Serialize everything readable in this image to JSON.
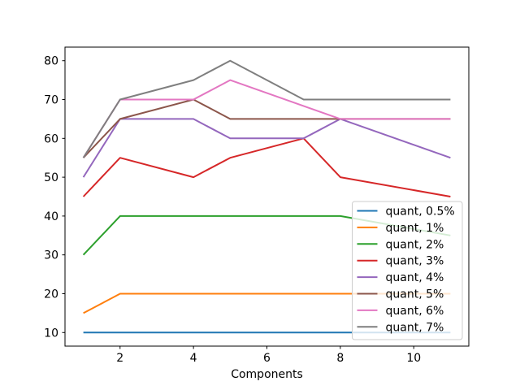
{
  "chart_data": {
    "type": "line",
    "title": "",
    "xlabel": "Components",
    "ylabel": "",
    "x_ticks": [
      2,
      4,
      6,
      8,
      10
    ],
    "y_ticks": [
      10,
      20,
      30,
      40,
      50,
      60,
      70,
      80
    ],
    "xlim": [
      0.5,
      11.5
    ],
    "ylim": [
      6.5,
      83.5
    ],
    "grid": false,
    "legend_position": "inside lower-right of axes",
    "legend_frame_color": "#cccccc",
    "axes_edge_color": "#000000",
    "series": [
      {
        "name": "quant, 0.5%",
        "color": "#1f77b4",
        "points": [
          [
            1,
            10
          ],
          [
            11,
            10
          ]
        ]
      },
      {
        "name": "quant, 1%",
        "color": "#ff7f0e",
        "points": [
          [
            1,
            15
          ],
          [
            2,
            20
          ],
          [
            11,
            20
          ]
        ]
      },
      {
        "name": "quant, 2%",
        "color": "#2ca02c",
        "points": [
          [
            1,
            30
          ],
          [
            2,
            40
          ],
          [
            8,
            40
          ],
          [
            11,
            35
          ]
        ]
      },
      {
        "name": "quant, 3%",
        "color": "#d62728",
        "points": [
          [
            1,
            45
          ],
          [
            2,
            55
          ],
          [
            4,
            50
          ],
          [
            5,
            55
          ],
          [
            7,
            60
          ],
          [
            8,
            50
          ],
          [
            11,
            45
          ]
        ]
      },
      {
        "name": "quant, 4%",
        "color": "#9467bd",
        "points": [
          [
            1,
            50
          ],
          [
            2,
            65
          ],
          [
            4,
            65
          ],
          [
            5,
            60
          ],
          [
            7,
            60
          ],
          [
            8,
            65
          ],
          [
            11,
            55
          ]
        ]
      },
      {
        "name": "quant, 5%",
        "color": "#8c564b",
        "points": [
          [
            1,
            55
          ],
          [
            2,
            65
          ],
          [
            4,
            70
          ],
          [
            5,
            65
          ],
          [
            11,
            65
          ]
        ]
      },
      {
        "name": "quant, 6%",
        "color": "#e377c2",
        "points": [
          [
            1,
            55
          ],
          [
            2,
            70
          ],
          [
            4,
            70
          ],
          [
            5,
            75
          ],
          [
            8,
            65
          ],
          [
            11,
            65
          ]
        ]
      },
      {
        "name": "quant, 7%",
        "color": "#7f7f7f",
        "points": [
          [
            1,
            55
          ],
          [
            2,
            70
          ],
          [
            4,
            75
          ],
          [
            5,
            80
          ],
          [
            7,
            70
          ],
          [
            11,
            70
          ]
        ]
      }
    ]
  }
}
